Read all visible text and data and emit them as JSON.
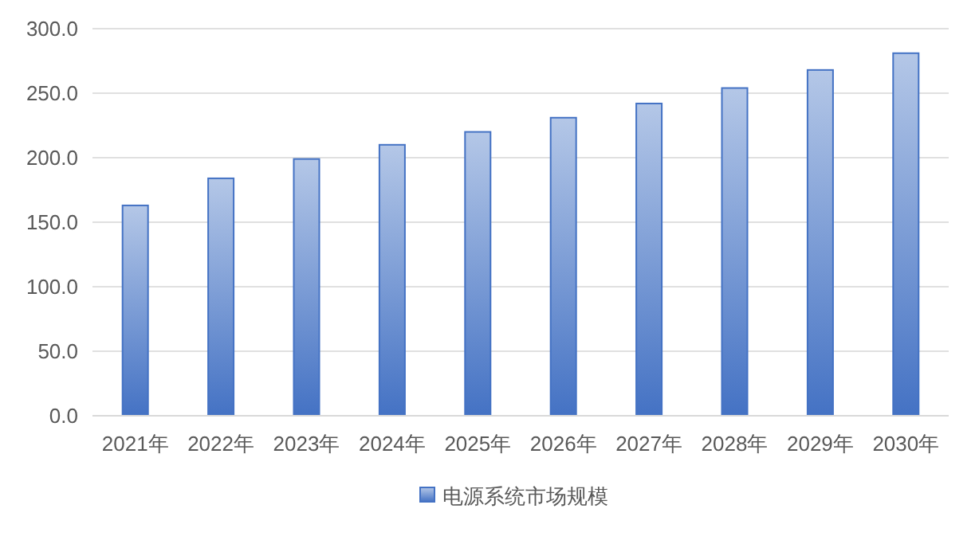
{
  "chart_data": {
    "type": "bar",
    "categories": [
      "2021年",
      "2022年",
      "2023年",
      "2024年",
      "2025年",
      "2026年",
      "2027年",
      "2028年",
      "2029年",
      "2030年"
    ],
    "series": [
      {
        "name": "电源系统市场规模",
        "color": "#4472c4",
        "values": [
          163,
          184,
          199,
          210,
          220,
          231,
          242,
          254,
          268,
          281
        ]
      }
    ],
    "ylim": [
      0,
      300
    ],
    "yticks": [
      {
        "value": 0,
        "label": "0.0"
      },
      {
        "value": 50,
        "label": "50.0"
      },
      {
        "value": 100,
        "label": "100.0"
      },
      {
        "value": 150,
        "label": "150.0"
      },
      {
        "value": 200,
        "label": "200.0"
      },
      {
        "value": 250,
        "label": "250.0"
      },
      {
        "value": 300,
        "label": "300.0"
      }
    ],
    "grid": "y",
    "legend": "bottom"
  }
}
